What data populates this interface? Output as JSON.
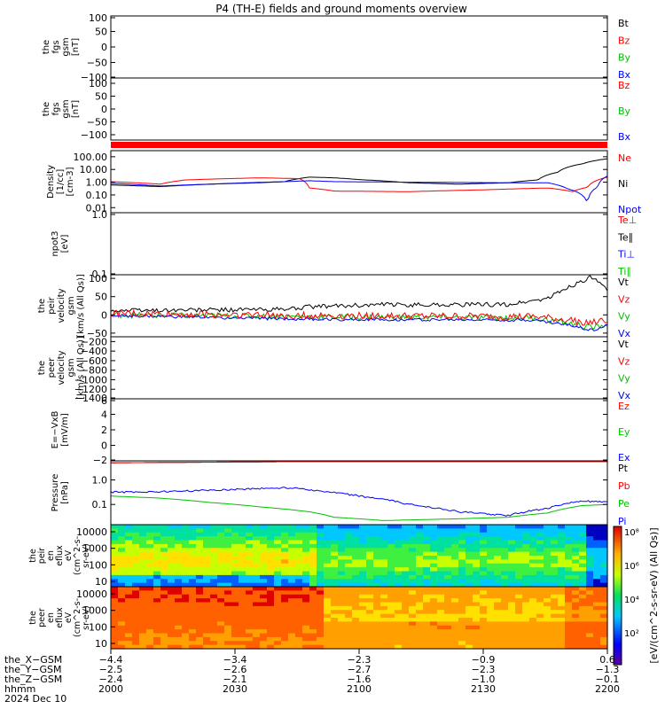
{
  "chart_data": {
    "type": "line",
    "title": "P4 (TH-E) fields and ground moments overview",
    "panels": [
      {
        "id": "fgs",
        "ylabel": [
          "the",
          "fgs",
          "gsm",
          "[nT]"
        ],
        "yticks": [
          "100",
          "50",
          "0",
          "−50",
          "−100"
        ],
        "ylim": [
          -100,
          100
        ],
        "legend": [
          {
            "label": "Bt",
            "color": "#000000"
          },
          {
            "label": "Bz",
            "color": "#ff0000"
          },
          {
            "label": "By",
            "color": "#00c000"
          },
          {
            "label": "Bx",
            "color": "#0000ff"
          }
        ],
        "series": []
      },
      {
        "id": "fgs2",
        "ylabel": [
          "the",
          "fgs",
          "gsm",
          "[nT]"
        ],
        "yticks": [
          "100",
          "50",
          "0",
          "−50",
          "−100"
        ],
        "ylim": [
          -130,
          130
        ],
        "legend": [
          {
            "label": "Bz",
            "color": "#ff0000"
          },
          {
            "label": "By",
            "color": "#00c000"
          },
          {
            "label": "Bx",
            "color": "#0000ff"
          }
        ],
        "series": []
      },
      {
        "id": "density",
        "ylabel": [
          "Density",
          "[1/cc]",
          "[cm-3]"
        ],
        "yticks": [
          "100.00",
          "10.00",
          "1.00",
          "0.10",
          "0.01"
        ],
        "ylog": true,
        "ylim": [
          0.004,
          300
        ],
        "legend": [
          {
            "label": "Ne",
            "color": "#ff0000"
          },
          {
            "label": "Ni",
            "color": "#000000"
          },
          {
            "label": "Npot",
            "color": "#0000ff"
          }
        ],
        "series": [
          {
            "color": "#000000",
            "x": [
              0,
              0.1,
              0.2,
              0.35,
              0.4,
              0.45,
              0.5,
              0.6,
              0.7,
              0.8,
              0.86,
              0.9,
              0.95,
              1.0
            ],
            "y": [
              0.6,
              0.45,
              0.7,
              1.1,
              2.5,
              2.2,
              1.6,
              0.9,
              0.7,
              0.9,
              1.5,
              6,
              28,
              70
            ]
          },
          {
            "color": "#ff0000",
            "x": [
              0,
              0.1,
              0.15,
              0.3,
              0.38,
              0.4,
              0.45,
              0.6,
              0.75,
              0.88,
              0.93,
              0.96,
              1.0
            ],
            "y": [
              1.1,
              0.7,
              1.5,
              2.2,
              1.9,
              0.35,
              0.2,
              0.18,
              0.25,
              0.35,
              0.18,
              0.4,
              2.5
            ]
          },
          {
            "color": "#0000ff",
            "x": [
              0,
              0.1,
              0.3,
              0.4,
              0.45,
              0.6,
              0.8,
              0.88,
              0.92,
              0.96,
              0.98,
              1.0
            ],
            "y": [
              0.8,
              0.5,
              0.9,
              1.3,
              1.1,
              1.0,
              0.9,
              0.9,
              0.3,
              0.02,
              0.4,
              3.0
            ]
          }
        ]
      },
      {
        "id": "npot",
        "ylabel": [
          "npot3",
          "[eV]"
        ],
        "yticks": [
          "1.0",
          "0.1"
        ],
        "ylog": true,
        "ylim": [
          0.1,
          1.0
        ],
        "legend": [
          {
            "label": "Te⊥",
            "color": "#ff0000"
          },
          {
            "label": "Te∥",
            "color": "#000000"
          },
          {
            "label": "Ti⊥",
            "color": "#0000ff"
          },
          {
            "label": "Ti∥",
            "color": "#00c000"
          }
        ],
        "series": []
      },
      {
        "id": "peir_vel",
        "ylabel": [
          "the",
          "peir",
          "velocity",
          "gsm",
          "[km/s (All Qs)]"
        ],
        "yticks": [
          "100",
          "50",
          "0",
          "−50"
        ],
        "ylim": [
          -60,
          110
        ],
        "legend": [
          {
            "label": "Vt",
            "color": "#000000"
          },
          {
            "label": "Vz",
            "color": "#ff0000"
          },
          {
            "label": "Vy",
            "color": "#00c000"
          },
          {
            "label": "Vx",
            "color": "#0000ff"
          }
        ],
        "series": [
          {
            "color": "#000000",
            "noise": 6,
            "x": [
              0,
              0.35,
              0.4,
              0.55,
              0.8,
              0.88,
              0.92,
              0.97,
              1.0
            ],
            "y": [
              12,
              15,
              22,
              28,
              28,
              45,
              75,
              105,
              65
            ]
          },
          {
            "color": "#00c000",
            "noise": 8,
            "x": [
              0,
              0.4,
              0.85,
              0.93,
              0.97,
              1.0
            ],
            "y": [
              0,
              -5,
              -8,
              -25,
              -35,
              -25
            ]
          },
          {
            "color": "#0000ff",
            "noise": 4,
            "x": [
              0,
              0.4,
              0.85,
              0.93,
              0.97,
              1.0
            ],
            "y": [
              -2,
              -12,
              -14,
              -30,
              -42,
              -28
            ]
          },
          {
            "color": "#ff0000",
            "noise": 10,
            "x": [
              0,
              0.4,
              0.85,
              0.93,
              0.97,
              1.0
            ],
            "y": [
              4,
              -2,
              -5,
              -15,
              -22,
              -15
            ]
          }
        ]
      },
      {
        "id": "peer_vel",
        "ylabel": [
          "the",
          "peer",
          "velocity",
          "gsm",
          "[km/s (All Qs)]"
        ],
        "yticks": [
          "−200",
          "−400",
          "−600",
          "−800",
          "−1000",
          "−1200",
          "−1400"
        ],
        "ylim": [
          -1400,
          -100
        ],
        "legend": [
          {
            "label": "Vt",
            "color": "#000000"
          },
          {
            "label": "Vz",
            "color": "#ff0000"
          },
          {
            "label": "Vy",
            "color": "#00c000"
          },
          {
            "label": "Vx",
            "color": "#0000ff"
          }
        ],
        "series": []
      },
      {
        "id": "efield",
        "ylabel": [
          "E=−VxB",
          "[mV/m]"
        ],
        "yticks": [
          "6",
          "4",
          "2",
          "0",
          "−2"
        ],
        "ylim": [
          -2,
          6
        ],
        "legend": [
          {
            "label": "Ez",
            "color": "#ff0000"
          },
          {
            "label": "Ey",
            "color": "#00c000"
          },
          {
            "label": "Ex",
            "color": "#0000ff"
          }
        ],
        "series": []
      },
      {
        "id": "pressure",
        "ylabel": [
          "Pressure",
          "[nPa]"
        ],
        "yticks": [
          "1.0",
          "0.1"
        ],
        "ylog": true,
        "ylim": [
          0.015,
          6
        ],
        "legend": [
          {
            "label": "Pt",
            "color": "#000000"
          },
          {
            "label": "Pb",
            "color": "#ff0000"
          },
          {
            "label": "Pe",
            "color": "#00c000"
          },
          {
            "label": "Pi",
            "color": "#0000ff"
          }
        ],
        "series": [
          {
            "color": "#000000",
            "x": [
              0,
              0.4,
              1.0
            ],
            "y": [
              5.0,
              5.6,
              6.0
            ]
          },
          {
            "color": "#ff0000",
            "x": [
              0,
              0.4,
              1.0
            ],
            "y": [
              5.0,
              5.6,
              6.0
            ]
          },
          {
            "color": "#0000ff",
            "noise": 0.04,
            "x": [
              0,
              0.1,
              0.2,
              0.3,
              0.37,
              0.42,
              0.5,
              0.6,
              0.7,
              0.8,
              0.88,
              0.95,
              1.0
            ],
            "y": [
              0.32,
              0.33,
              0.38,
              0.45,
              0.48,
              0.35,
              0.22,
              0.1,
              0.05,
              0.035,
              0.07,
              0.14,
              0.12
            ]
          },
          {
            "color": "#00c000",
            "x": [
              0,
              0.1,
              0.2,
              0.3,
              0.4,
              0.45,
              0.55,
              0.7,
              0.8,
              0.88,
              0.95,
              1.0
            ],
            "y": [
              0.22,
              0.18,
              0.12,
              0.08,
              0.05,
              0.03,
              0.022,
              0.026,
              0.03,
              0.045,
              0.09,
              0.1
            ]
          }
        ]
      }
    ],
    "spectrograms": [
      {
        "id": "peir_eflux",
        "ylabel": [
          "the",
          "peir",
          "en",
          "eflux",
          "eV",
          "(cm^2-s-",
          "sr-eV)"
        ],
        "yticks": [
          "10000",
          "1000",
          "100",
          "10"
        ]
      },
      {
        "id": "peer_eflux",
        "ylabel": [
          "the",
          "peer",
          "en",
          "eflux",
          "eV",
          "(cm^2-s-",
          "sr-eV)"
        ],
        "yticks": [
          "10000",
          "1000",
          "100",
          "10"
        ]
      }
    ],
    "colorbar": {
      "ticks": [
        "10⁸",
        "10⁶",
        "10⁴",
        "10²"
      ],
      "label": "[eV/(cm^2-s-sr-eV) (All Qs)]"
    },
    "xaxis": {
      "rows": [
        {
          "label": "the_X−GSM",
          "values": [
            "−4.4",
            "−3.4",
            "−2.3",
            "−0.9",
            "0.6"
          ]
        },
        {
          "label": "the_Y−GSM",
          "values": [
            "−2.5",
            "−2.6",
            "−2.7",
            "−2.3",
            "−1.3"
          ]
        },
        {
          "label": "the_Z−GSM",
          "values": [
            "−2.4",
            "−2.1",
            "−1.6",
            "−1.0",
            "−0.1"
          ]
        },
        {
          "label": "hhmm",
          "values": [
            "2000",
            "2030",
            "2100",
            "2130",
            "2200"
          ]
        }
      ],
      "date": "2024 Dec 10"
    }
  }
}
